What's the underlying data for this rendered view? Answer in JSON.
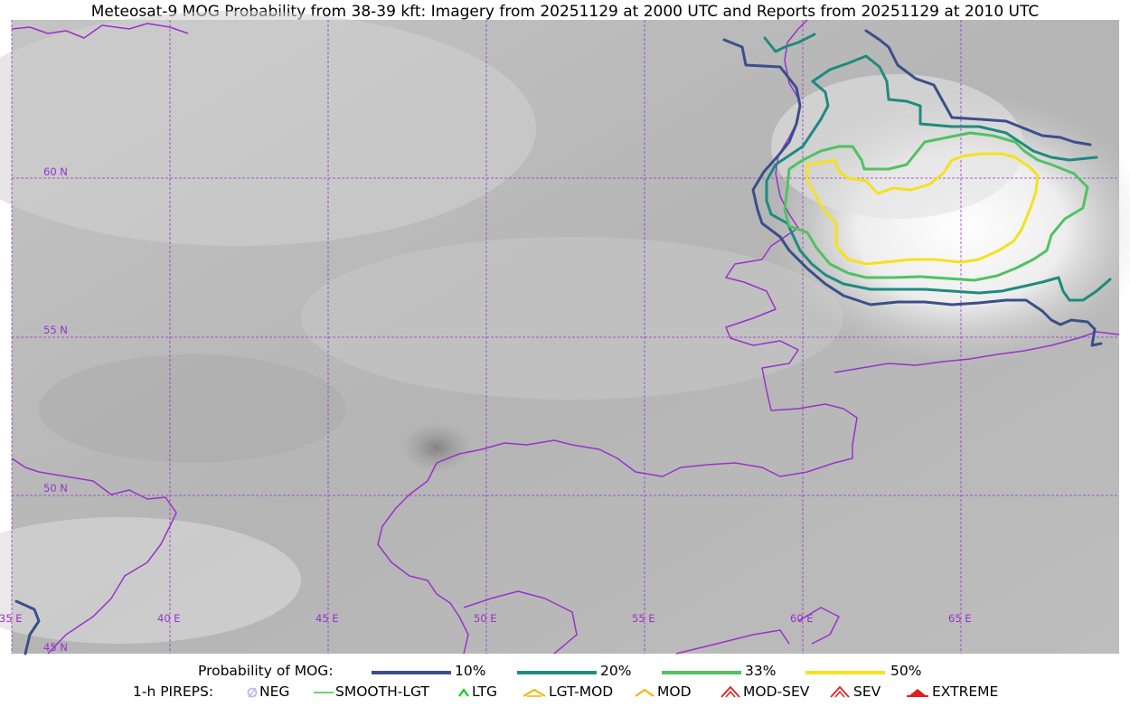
{
  "title": "Meteosat-9 MOG Probability from 38-39 kft: Imagery from 20251129 at 2000 UTC and Reports from 20251129 at 2010 UTC",
  "map": {
    "latitude_labels": [
      "60 N",
      "55 N",
      "50 N",
      "45 N"
    ],
    "longitude_labels": [
      "35 E",
      "40 E",
      "45 E",
      "50 E",
      "55 E",
      "60 E",
      "65 E"
    ],
    "gridline_color": "#9932cc",
    "coastline_color": "#9932cc"
  },
  "contour_legend": {
    "label": "Probability of MOG:",
    "items": [
      {
        "text": "10%",
        "color": "#3b4f8a"
      },
      {
        "text": "20%",
        "color": "#1f8a80"
      },
      {
        "text": "33%",
        "color": "#52c162"
      },
      {
        "text": "50%",
        "color": "#f4e21f"
      }
    ]
  },
  "pirep_legend": {
    "label": "1-h PIREPS:",
    "items": [
      {
        "text": "NEG",
        "color": "#b9b9f0",
        "icon": "neg-circle-icon"
      },
      {
        "text": "SMOOTH-LGT",
        "color": "#33cc33",
        "icon": "smooth-light-line-icon"
      },
      {
        "text": "LTG",
        "color": "#00cc00",
        "icon": "light-caret-icon"
      },
      {
        "text": "LGT-MOD",
        "color": "#f0b400",
        "icon": "light-moderate-caret-icon"
      },
      {
        "text": "MOD",
        "color": "#f0b400",
        "icon": "moderate-caret-icon"
      },
      {
        "text": "MOD-SEV",
        "color": "#e02020",
        "icon": "moderate-severe-caret-icon"
      },
      {
        "text": "SEV",
        "color": "#e02020",
        "icon": "severe-caret-icon"
      },
      {
        "text": "EXTREME",
        "color": "#e02020",
        "icon": "extreme-caret-icon"
      }
    ]
  }
}
